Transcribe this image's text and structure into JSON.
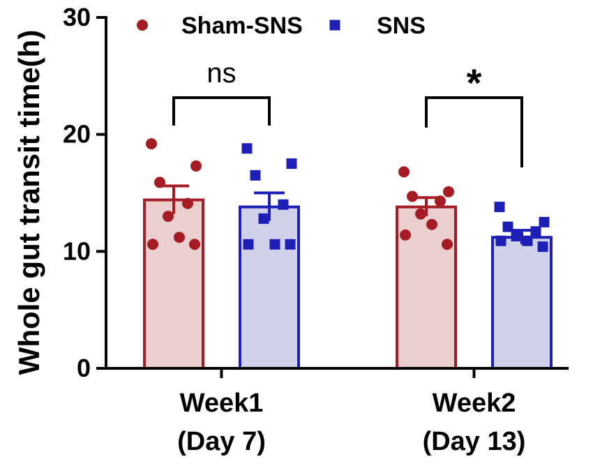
{
  "chart_data": {
    "type": "bar",
    "title": "",
    "xlabel": "",
    "ylabel": "Whole gut transit time(h)",
    "ylim": [
      0,
      30
    ],
    "yticks": [
      "0",
      "10",
      "20",
      "30"
    ],
    "grid": false,
    "legend_position": "top-left",
    "categories": [
      {
        "line1": "Week1",
        "line2": "(Day 7)"
      },
      {
        "line1": "Week2",
        "line2": "(Day 13)"
      }
    ],
    "series": [
      {
        "name": "Sham-SNS",
        "marker": "circle",
        "color": "#A51C24",
        "fill": "#EBCFCF",
        "values": [
          14.4,
          13.8
        ],
        "sem": [
          1.2,
          0.8
        ],
        "points": [
          [
            19.2,
            17.3,
            15.9,
            14.1,
            13.0,
            11.2,
            10.6,
            10.6
          ],
          [
            16.8,
            15.1,
            14.7,
            14.3,
            13.2,
            12.3,
            11.4,
            10.6
          ]
        ]
      },
      {
        "name": "SNS",
        "marker": "square",
        "color": "#1D1FB7",
        "fill": "#D0D2EB",
        "values": [
          13.8,
          11.2
        ],
        "sem": [
          1.2,
          0.6
        ],
        "points": [
          [
            18.8,
            17.5,
            16.5,
            14.0,
            12.8,
            10.6,
            10.6,
            10.6
          ],
          [
            13.8,
            12.5,
            12.1,
            11.7,
            11.3,
            10.9,
            10.9,
            10.4
          ]
        ]
      }
    ],
    "significance": [
      "ns",
      "*"
    ]
  }
}
